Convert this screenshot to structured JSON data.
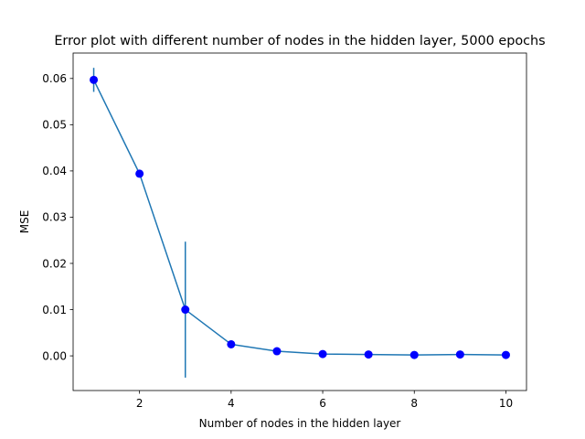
{
  "chart_data": {
    "type": "line",
    "title": "Error plot with different number of nodes in the hidden layer, 5000 epochs",
    "xlabel": "Number of nodes in the hidden layer",
    "ylabel": "MSE",
    "xlim": [
      0.55,
      10.45
    ],
    "ylim": [
      -0.0075,
      0.0655
    ],
    "xticks": [
      2,
      4,
      6,
      8,
      10
    ],
    "xtick_labels": [
      "2",
      "4",
      "6",
      "8",
      "10"
    ],
    "yticks": [
      0.0,
      0.01,
      0.02,
      0.03,
      0.04,
      0.05,
      0.06
    ],
    "ytick_labels": [
      "0.00",
      "0.01",
      "0.02",
      "0.03",
      "0.04",
      "0.05",
      "0.06"
    ],
    "grid": false,
    "legend": "none",
    "series": [
      {
        "x": [
          1,
          2,
          3,
          4,
          5,
          6,
          7,
          8,
          9,
          10
        ],
        "values": [
          0.0597,
          0.0394,
          0.01,
          0.0025,
          0.001,
          0.0004,
          0.0003,
          0.0002,
          0.0003,
          0.0002
        ],
        "error": [
          0.0026,
          0.0003,
          0.0147,
          0.0001,
          0.0001,
          0.0001,
          0.0001,
          0.0001,
          0.0001,
          0.0001
        ],
        "line_color": "#1f77b4",
        "marker_color": "#0000ff"
      }
    ]
  }
}
